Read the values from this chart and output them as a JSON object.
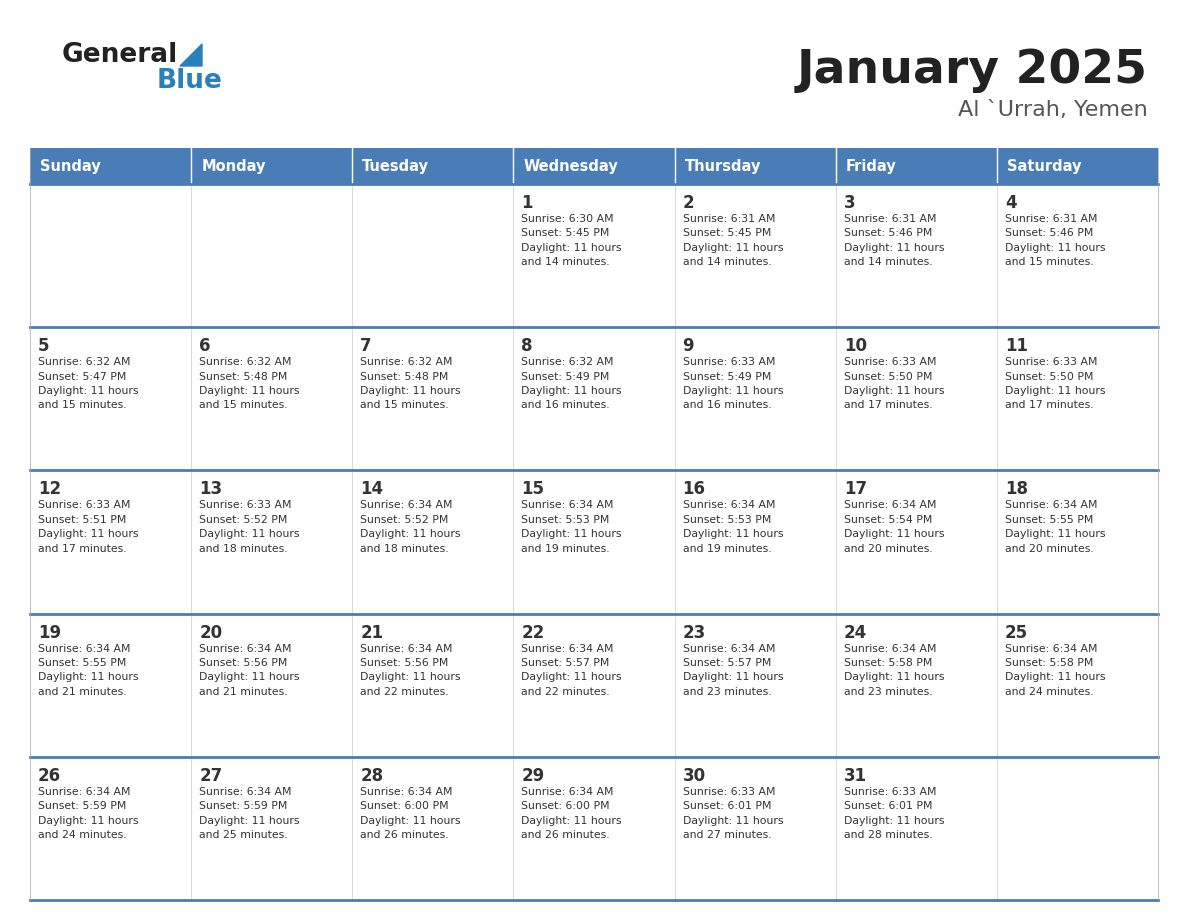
{
  "title": "January 2025",
  "subtitle": "Al `Urrah, Yemen",
  "days_of_week": [
    "Sunday",
    "Monday",
    "Tuesday",
    "Wednesday",
    "Thursday",
    "Friday",
    "Saturday"
  ],
  "header_bg": "#4A7DB5",
  "header_text_color": "#FFFFFF",
  "cell_bg": "#F2F4F6",
  "text_color": "#333333",
  "line_color": "#4A7DB5",
  "title_color": "#222222",
  "subtitle_color": "#555555",
  "blue_color": "#2980BA",
  "calendar": [
    [
      {
        "day": null,
        "info": null
      },
      {
        "day": null,
        "info": null
      },
      {
        "day": null,
        "info": null
      },
      {
        "day": 1,
        "info": "Sunrise: 6:30 AM\nSunset: 5:45 PM\nDaylight: 11 hours\nand 14 minutes."
      },
      {
        "day": 2,
        "info": "Sunrise: 6:31 AM\nSunset: 5:45 PM\nDaylight: 11 hours\nand 14 minutes."
      },
      {
        "day": 3,
        "info": "Sunrise: 6:31 AM\nSunset: 5:46 PM\nDaylight: 11 hours\nand 14 minutes."
      },
      {
        "day": 4,
        "info": "Sunrise: 6:31 AM\nSunset: 5:46 PM\nDaylight: 11 hours\nand 15 minutes."
      }
    ],
    [
      {
        "day": 5,
        "info": "Sunrise: 6:32 AM\nSunset: 5:47 PM\nDaylight: 11 hours\nand 15 minutes."
      },
      {
        "day": 6,
        "info": "Sunrise: 6:32 AM\nSunset: 5:48 PM\nDaylight: 11 hours\nand 15 minutes."
      },
      {
        "day": 7,
        "info": "Sunrise: 6:32 AM\nSunset: 5:48 PM\nDaylight: 11 hours\nand 15 minutes."
      },
      {
        "day": 8,
        "info": "Sunrise: 6:32 AM\nSunset: 5:49 PM\nDaylight: 11 hours\nand 16 minutes."
      },
      {
        "day": 9,
        "info": "Sunrise: 6:33 AM\nSunset: 5:49 PM\nDaylight: 11 hours\nand 16 minutes."
      },
      {
        "day": 10,
        "info": "Sunrise: 6:33 AM\nSunset: 5:50 PM\nDaylight: 11 hours\nand 17 minutes."
      },
      {
        "day": 11,
        "info": "Sunrise: 6:33 AM\nSunset: 5:50 PM\nDaylight: 11 hours\nand 17 minutes."
      }
    ],
    [
      {
        "day": 12,
        "info": "Sunrise: 6:33 AM\nSunset: 5:51 PM\nDaylight: 11 hours\nand 17 minutes."
      },
      {
        "day": 13,
        "info": "Sunrise: 6:33 AM\nSunset: 5:52 PM\nDaylight: 11 hours\nand 18 minutes."
      },
      {
        "day": 14,
        "info": "Sunrise: 6:34 AM\nSunset: 5:52 PM\nDaylight: 11 hours\nand 18 minutes."
      },
      {
        "day": 15,
        "info": "Sunrise: 6:34 AM\nSunset: 5:53 PM\nDaylight: 11 hours\nand 19 minutes."
      },
      {
        "day": 16,
        "info": "Sunrise: 6:34 AM\nSunset: 5:53 PM\nDaylight: 11 hours\nand 19 minutes."
      },
      {
        "day": 17,
        "info": "Sunrise: 6:34 AM\nSunset: 5:54 PM\nDaylight: 11 hours\nand 20 minutes."
      },
      {
        "day": 18,
        "info": "Sunrise: 6:34 AM\nSunset: 5:55 PM\nDaylight: 11 hours\nand 20 minutes."
      }
    ],
    [
      {
        "day": 19,
        "info": "Sunrise: 6:34 AM\nSunset: 5:55 PM\nDaylight: 11 hours\nand 21 minutes."
      },
      {
        "day": 20,
        "info": "Sunrise: 6:34 AM\nSunset: 5:56 PM\nDaylight: 11 hours\nand 21 minutes."
      },
      {
        "day": 21,
        "info": "Sunrise: 6:34 AM\nSunset: 5:56 PM\nDaylight: 11 hours\nand 22 minutes."
      },
      {
        "day": 22,
        "info": "Sunrise: 6:34 AM\nSunset: 5:57 PM\nDaylight: 11 hours\nand 22 minutes."
      },
      {
        "day": 23,
        "info": "Sunrise: 6:34 AM\nSunset: 5:57 PM\nDaylight: 11 hours\nand 23 minutes."
      },
      {
        "day": 24,
        "info": "Sunrise: 6:34 AM\nSunset: 5:58 PM\nDaylight: 11 hours\nand 23 minutes."
      },
      {
        "day": 25,
        "info": "Sunrise: 6:34 AM\nSunset: 5:58 PM\nDaylight: 11 hours\nand 24 minutes."
      }
    ],
    [
      {
        "day": 26,
        "info": "Sunrise: 6:34 AM\nSunset: 5:59 PM\nDaylight: 11 hours\nand 24 minutes."
      },
      {
        "day": 27,
        "info": "Sunrise: 6:34 AM\nSunset: 5:59 PM\nDaylight: 11 hours\nand 25 minutes."
      },
      {
        "day": 28,
        "info": "Sunrise: 6:34 AM\nSunset: 6:00 PM\nDaylight: 11 hours\nand 26 minutes."
      },
      {
        "day": 29,
        "info": "Sunrise: 6:34 AM\nSunset: 6:00 PM\nDaylight: 11 hours\nand 26 minutes."
      },
      {
        "day": 30,
        "info": "Sunrise: 6:33 AM\nSunset: 6:01 PM\nDaylight: 11 hours\nand 27 minutes."
      },
      {
        "day": 31,
        "info": "Sunrise: 6:33 AM\nSunset: 6:01 PM\nDaylight: 11 hours\nand 28 minutes."
      },
      {
        "day": null,
        "info": null
      }
    ]
  ]
}
